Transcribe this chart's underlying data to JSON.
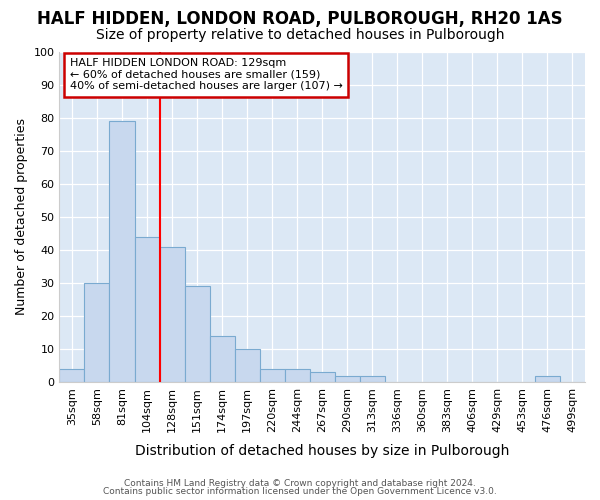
{
  "title1": "HALF HIDDEN, LONDON ROAD, PULBOROUGH, RH20 1AS",
  "title2": "Size of property relative to detached houses in Pulborough",
  "xlabel": "Distribution of detached houses by size in Pulborough",
  "ylabel": "Number of detached properties",
  "bar_labels": [
    "35sqm",
    "58sqm",
    "81sqm",
    "104sqm",
    "128sqm",
    "151sqm",
    "174sqm",
    "197sqm",
    "220sqm",
    "244sqm",
    "267sqm",
    "290sqm",
    "313sqm",
    "336sqm",
    "360sqm",
    "383sqm",
    "406sqm",
    "429sqm",
    "453sqm",
    "476sqm",
    "499sqm"
  ],
  "bar_values": [
    4,
    30,
    79,
    44,
    41,
    29,
    14,
    10,
    4,
    4,
    3,
    2,
    2,
    0,
    0,
    0,
    0,
    0,
    0,
    2,
    0
  ],
  "bar_color": "#c8d8ee",
  "bar_edge_color": "#7aaad0",
  "red_line_label": "HALF HIDDEN LONDON ROAD: 129sqm",
  "annotation_line1": "← 60% of detached houses are smaller (159)",
  "annotation_line2": "40% of semi-detached houses are larger (107) →",
  "annotation_box_color": "#ffffff",
  "annotation_box_edge": "#cc0000",
  "footer1": "Contains HM Land Registry data © Crown copyright and database right 2024.",
  "footer2": "Contains public sector information licensed under the Open Government Licence v3.0.",
  "ylim": [
    0,
    100
  ],
  "yticks": [
    0,
    10,
    20,
    30,
    40,
    50,
    60,
    70,
    80,
    90,
    100
  ],
  "plot_bg_color": "#dce8f5",
  "fig_bg_color": "#ffffff",
  "grid_color": "#ffffff",
  "title1_fontsize": 12,
  "title2_fontsize": 10,
  "xlabel_fontsize": 10,
  "ylabel_fontsize": 9,
  "tick_fontsize": 8,
  "red_line_x": 3.5
}
